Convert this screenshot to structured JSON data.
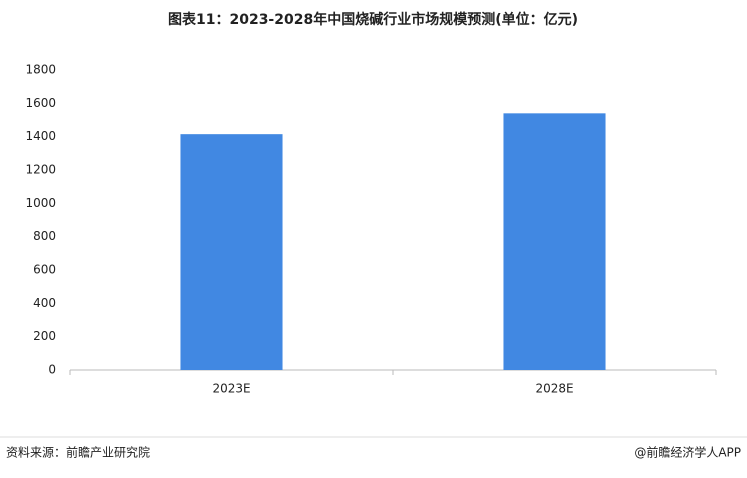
{
  "chart_data": {
    "type": "bar",
    "title": "图表11：2023-2028年中国烧碱行业市场规模预测(单位：亿元)",
    "categories": [
      "2023E",
      "2028E"
    ],
    "values": [
      1415,
      1540
    ],
    "color": "#4188e2",
    "ylim": [
      0,
      1800
    ],
    "yticks": [
      0,
      200,
      400,
      600,
      800,
      1000,
      1200,
      1400,
      1600,
      1800
    ],
    "grid": false,
    "source": "资料来源：前瞻产业研究院",
    "credit": "@前瞻经济学人APP"
  }
}
